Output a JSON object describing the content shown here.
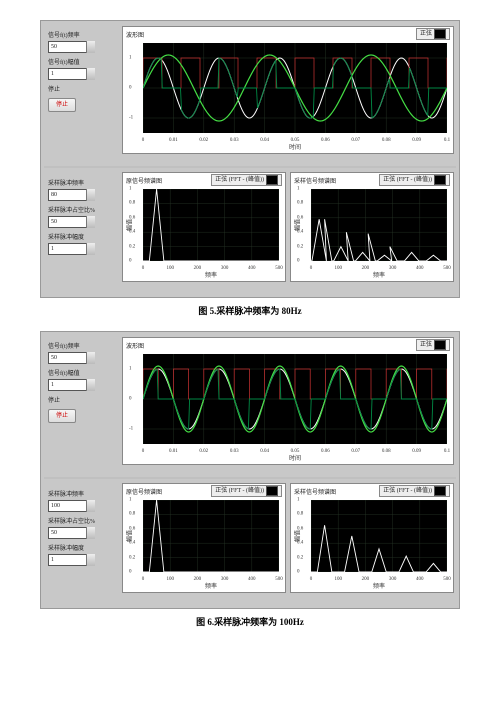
{
  "figures": [
    {
      "caption": "图 5.采样脉冲频率为 80Hz",
      "controls_upper": {
        "freq_label": "信号f(t)频率",
        "freq_value": "50",
        "amp_label": "信号f(t)幅值",
        "amp_value": "1",
        "stop_caption": "停止",
        "stop_btn": "停止"
      },
      "controls_lower": {
        "sfreq_label": "采样脉冲频率",
        "sfreq_value": "80",
        "duty_label": "采样脉冲占空比%",
        "duty_value": "50",
        "samp_label": "采样脉冲幅度",
        "samp_value": "1"
      },
      "wave": {
        "title": "波形图",
        "legend_text": "正弦",
        "xlabel": "时间",
        "ylabel": "",
        "xlim": [
          0,
          0.1
        ],
        "ylim": [
          -1.5,
          1.5
        ],
        "xticks": [
          0,
          0.01,
          0.02,
          0.03,
          0.04,
          0.05,
          0.06,
          0.07,
          0.08,
          0.09,
          0.1
        ],
        "yticks": [
          -1,
          0,
          1
        ],
        "grid_color": "#233a23",
        "series": [
          {
            "name": "sine",
            "type": "sine_thick",
            "f": 50,
            "amp": 1.0,
            "color": "#ffffff",
            "sw": 1.0
          },
          {
            "name": "pulse",
            "type": "pulse",
            "f": 80,
            "amp": 1.0,
            "color": "#cc3333",
            "sw": 0.7
          },
          {
            "name": "ideal",
            "type": "sine",
            "f": 30,
            "amp": 1.1,
            "color": "#44dd44",
            "sw": 1.2
          },
          {
            "name": "sampled",
            "type": "sampled_sine",
            "f": 50,
            "sf": 80,
            "amp": 1.0,
            "color": "#008844",
            "sw": 0.9
          }
        ]
      },
      "specL": {
        "title": "原信号频谱图",
        "legend_text": "正弦 (FFT - (峰值))",
        "xlabel": "频率",
        "ylabel": "幅值",
        "xlim": [
          0,
          500
        ],
        "ylim": [
          0,
          1
        ],
        "xticks": [
          0,
          100,
          200,
          300,
          400,
          500
        ],
        "yticks": [
          0,
          0.2,
          0.4,
          0.6,
          0.8,
          1
        ],
        "peaks": [
          [
            50,
            1.0
          ]
        ],
        "color": "#ffffff"
      },
      "specR": {
        "title": "采样信号频谱图",
        "legend_text": "正弦 (FFT - (峰值))",
        "xlabel": "频率",
        "ylabel": "幅值",
        "xlim": [
          0,
          500
        ],
        "ylim": [
          0,
          1
        ],
        "xticks": [
          0,
          100,
          200,
          300,
          400,
          500
        ],
        "yticks": [
          0,
          0.2,
          0.4,
          0.6,
          0.8,
          1
        ],
        "peaks": [
          [
            30,
            0.58
          ],
          [
            50,
            0.58
          ],
          [
            110,
            0.2
          ],
          [
            130,
            0.4
          ],
          [
            190,
            0.12
          ],
          [
            210,
            0.38
          ],
          [
            270,
            0.08
          ],
          [
            290,
            0.2
          ],
          [
            370,
            0.12
          ],
          [
            450,
            0.08
          ]
        ],
        "color": "#ffffff"
      }
    },
    {
      "caption": "图 6.采样脉冲频率为 100Hz",
      "controls_upper": {
        "freq_label": "信号f(t)频率",
        "freq_value": "50",
        "amp_label": "信号f(t)幅值",
        "amp_value": "1",
        "stop_caption": "停止",
        "stop_btn": "停止"
      },
      "controls_lower": {
        "sfreq_label": "采样脉冲频率",
        "sfreq_value": "100",
        "duty_label": "采样脉冲占空比%",
        "duty_value": "50",
        "samp_label": "采样脉冲幅度",
        "samp_value": "1"
      },
      "wave": {
        "title": "波形图",
        "legend_text": "正弦",
        "xlabel": "时间",
        "ylabel": "",
        "xlim": [
          0,
          0.1
        ],
        "ylim": [
          -1.5,
          1.5
        ],
        "xticks": [
          0,
          0.01,
          0.02,
          0.03,
          0.04,
          0.05,
          0.06,
          0.07,
          0.08,
          0.09,
          0.1
        ],
        "yticks": [
          -1,
          0,
          1
        ],
        "grid_color": "#233a23",
        "series": [
          {
            "name": "sine",
            "type": "sine_thick",
            "f": 50,
            "amp": 1.0,
            "color": "#ffffff",
            "sw": 1.0
          },
          {
            "name": "pulse",
            "type": "pulse",
            "f": 100,
            "amp": 1.0,
            "color": "#cc3333",
            "sw": 0.7
          },
          {
            "name": "ideal",
            "type": "sine",
            "f": 50,
            "amp": 1.1,
            "color": "#44dd44",
            "sw": 1.2
          },
          {
            "name": "sampled",
            "type": "sampled_sine",
            "f": 50,
            "sf": 100,
            "amp": 1.0,
            "color": "#008844",
            "sw": 0.9
          }
        ]
      },
      "specL": {
        "title": "原信号频谱图",
        "legend_text": "正弦 (FFT - (峰值))",
        "xlabel": "频率",
        "ylabel": "幅值",
        "xlim": [
          0,
          500
        ],
        "ylim": [
          0,
          1
        ],
        "xticks": [
          0,
          100,
          200,
          300,
          400,
          500
        ],
        "yticks": [
          0,
          0.2,
          0.4,
          0.6,
          0.8,
          1
        ],
        "peaks": [
          [
            50,
            1.0
          ]
        ],
        "color": "#ffffff"
      },
      "specR": {
        "title": "采样信号频谱图",
        "legend_text": "正弦 (FFT - (峰值))",
        "xlabel": "频率",
        "ylabel": "幅值",
        "xlim": [
          0,
          500
        ],
        "ylim": [
          0,
          1
        ],
        "xticks": [
          0,
          100,
          200,
          300,
          400,
          500
        ],
        "yticks": [
          0,
          0.2,
          0.4,
          0.6,
          0.8,
          1
        ],
        "peaks": [
          [
            50,
            0.65
          ],
          [
            150,
            0.5
          ],
          [
            250,
            0.32
          ],
          [
            350,
            0.22
          ],
          [
            450,
            0.12
          ]
        ],
        "color": "#ffffff"
      }
    }
  ]
}
